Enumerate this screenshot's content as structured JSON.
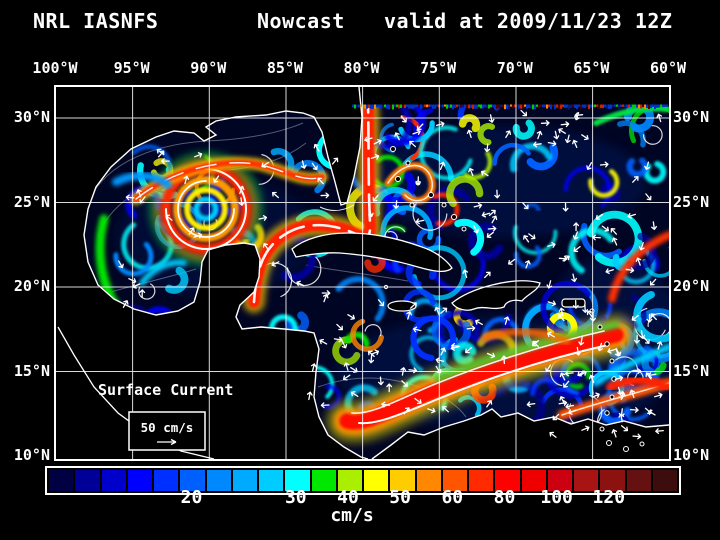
{
  "header": {
    "title_left": "NRL IASNFS",
    "title_center": "Nowcast",
    "title_right": "valid at 2009/11/23 12Z"
  },
  "map": {
    "lon_labels": [
      "100°W",
      "95°W",
      "90°W",
      "85°W",
      "80°W",
      "75°W",
      "70°W",
      "65°W",
      "60°W"
    ],
    "lat_labels_left": [
      "30°N",
      "25°N",
      "20°N",
      "15°N",
      "10°N"
    ],
    "lat_labels_right": [
      "30°N",
      "25°N",
      "20°N",
      "15°N",
      "10°N"
    ],
    "overlay_label": "Surface Current",
    "scale_label": "50 cm/s"
  },
  "colorbar": {
    "unit": "cm/s",
    "colors": [
      "#000042",
      "#000099",
      "#0000cc",
      "#0000ff",
      "#0030ff",
      "#0060ff",
      "#0088ff",
      "#00aaff",
      "#00ccff",
      "#00ffff",
      "#00e800",
      "#aaee00",
      "#ffff00",
      "#ffcc00",
      "#ff8800",
      "#ff5500",
      "#ff2a00",
      "#ff0000",
      "#ee0000",
      "#cc0011",
      "#a81414",
      "#8c1111",
      "#661111",
      "#3d0c0c"
    ],
    "ticks": [
      {
        "label": "20",
        "swatch": 5
      },
      {
        "label": "30",
        "swatch": 9
      },
      {
        "label": "40",
        "swatch": 11
      },
      {
        "label": "50",
        "swatch": 13
      },
      {
        "label": "60",
        "swatch": 15
      },
      {
        "label": "80",
        "swatch": 17
      },
      {
        "label": "100",
        "swatch": 19
      },
      {
        "label": "120",
        "swatch": 21
      }
    ]
  }
}
